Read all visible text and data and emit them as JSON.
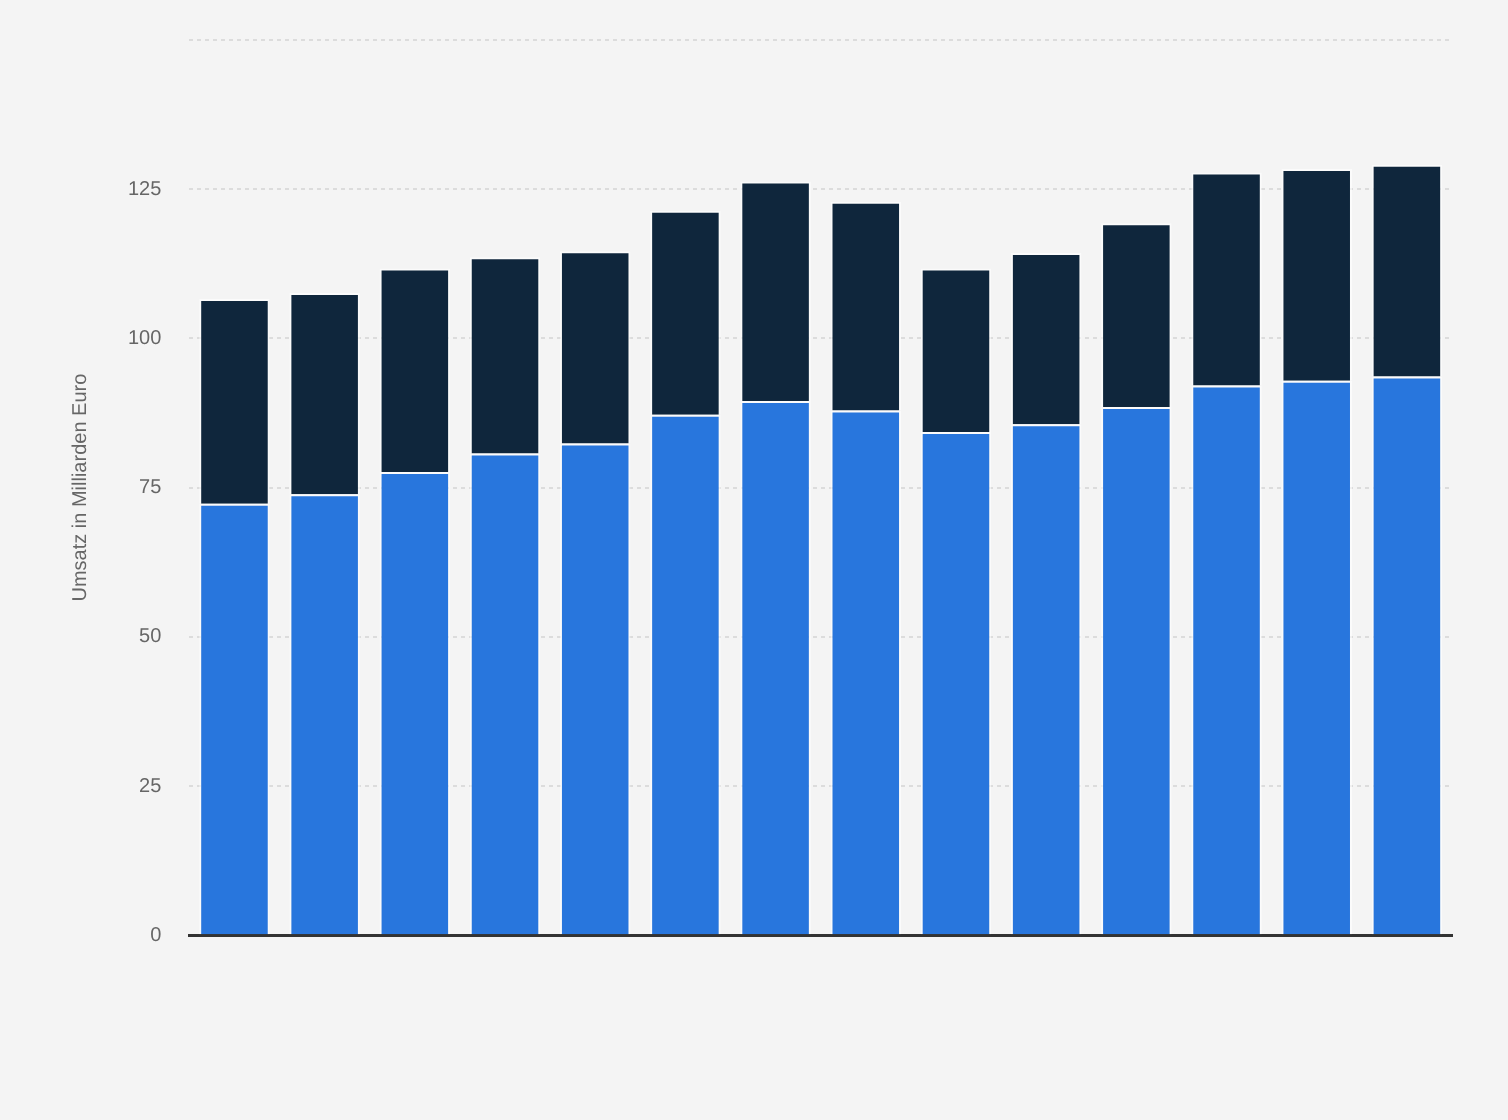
{
  "chart_data": {
    "type": "bar",
    "stacked": true,
    "ylabel": "Umsatz in Milliarden Euro",
    "categories": [
      null,
      null,
      null,
      null,
      null,
      null,
      null,
      null,
      null,
      null,
      null,
      null,
      null,
      null
    ],
    "series": [
      {
        "color": "#2876dd",
        "values": [
          72.3,
          73.9,
          77.6,
          80.7,
          82.4,
          87.2,
          89.5,
          87.9,
          84.3,
          85.6,
          88.5,
          92.1,
          92.9,
          93.6
        ]
      },
      {
        "color": "#0f263c",
        "values": [
          34.3,
          33.7,
          34.1,
          32.9,
          32.2,
          34.2,
          36.8,
          35.0,
          27.4,
          28.7,
          30.8,
          35.7,
          35.5,
          35.5
        ]
      }
    ],
    "ylim": [
      0,
      150
    ],
    "yticks": [
      0,
      25,
      50,
      75,
      100,
      125,
      {
        "value": 150,
        "label": null
      }
    ],
    "grid": "y",
    "legend": false
  }
}
